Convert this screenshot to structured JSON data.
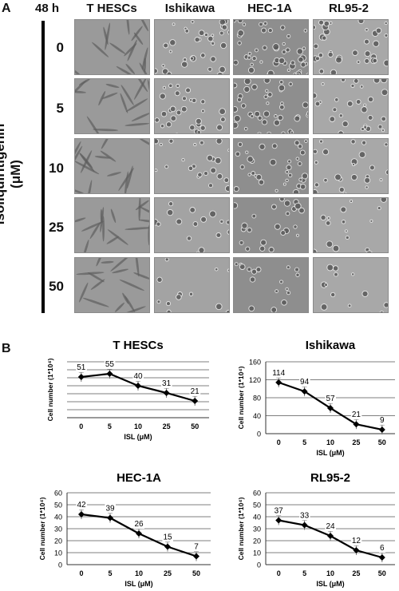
{
  "panel_a": {
    "letter": "A",
    "time": "48 h",
    "cell_lines": [
      "T HESCs",
      "Ishikawa",
      "HEC-1A",
      "RL95-2"
    ],
    "doses": [
      "0",
      "5",
      "10",
      "25",
      "50"
    ],
    "axis_label_line1": "Isoliquiritigenin",
    "axis_label_line2": "(μM)"
  },
  "panel_b": {
    "letter": "B"
  },
  "chart_data": [
    {
      "type": "line",
      "title": "T HESCs",
      "categories": [
        "0",
        "5",
        "10",
        "25",
        "50"
      ],
      "values": [
        51,
        55,
        40,
        31,
        21
      ],
      "data_labels": [
        "51",
        "55",
        "40",
        "31",
        "21"
      ],
      "xlabel": "ISL (μM)",
      "ylabel": "Cell number (1*10⁴)",
      "ylim": [
        0,
        70
      ],
      "gridlines": 7,
      "y_ticks": [],
      "grid": true
    },
    {
      "type": "line",
      "title": "Ishikawa",
      "categories": [
        "0",
        "5",
        "10",
        "25",
        "50"
      ],
      "values": [
        114,
        94,
        57,
        21,
        9
      ],
      "data_labels": [
        "114",
        "94",
        "57",
        "21",
        "9"
      ],
      "xlabel": "ISL (μM)",
      "ylabel": "Cell number (1*10⁴)",
      "ylim": [
        0,
        160
      ],
      "gridlines": 4,
      "y_ticks": [
        "0",
        "40",
        "80",
        "120",
        "160"
      ],
      "grid": true
    },
    {
      "type": "line",
      "title": "HEC-1A",
      "categories": [
        "0",
        "5",
        "10",
        "25",
        "50"
      ],
      "values": [
        42,
        39,
        26,
        15,
        7
      ],
      "data_labels": [
        "42",
        "39",
        "26",
        "15",
        "7"
      ],
      "xlabel": "ISL (μM)",
      "ylabel": "Cell number (1*10⁴)",
      "ylim": [
        0,
        60
      ],
      "gridlines": 6,
      "y_ticks": [
        "0",
        "10",
        "20",
        "30",
        "40",
        "50",
        "60"
      ],
      "grid": true
    },
    {
      "type": "line",
      "title": "RL95-2",
      "categories": [
        "0",
        "5",
        "10",
        "25",
        "50"
      ],
      "values": [
        37,
        33,
        24,
        12,
        6
      ],
      "data_labels": [
        "37",
        "33",
        "24",
        "12",
        "6"
      ],
      "xlabel": "ISL (μM)",
      "ylabel": "Cell number (1*10⁴)",
      "ylim": [
        0,
        60
      ],
      "gridlines": 6,
      "y_ticks": [
        "0",
        "10",
        "20",
        "30",
        "40",
        "50",
        "60"
      ],
      "grid": true
    }
  ]
}
